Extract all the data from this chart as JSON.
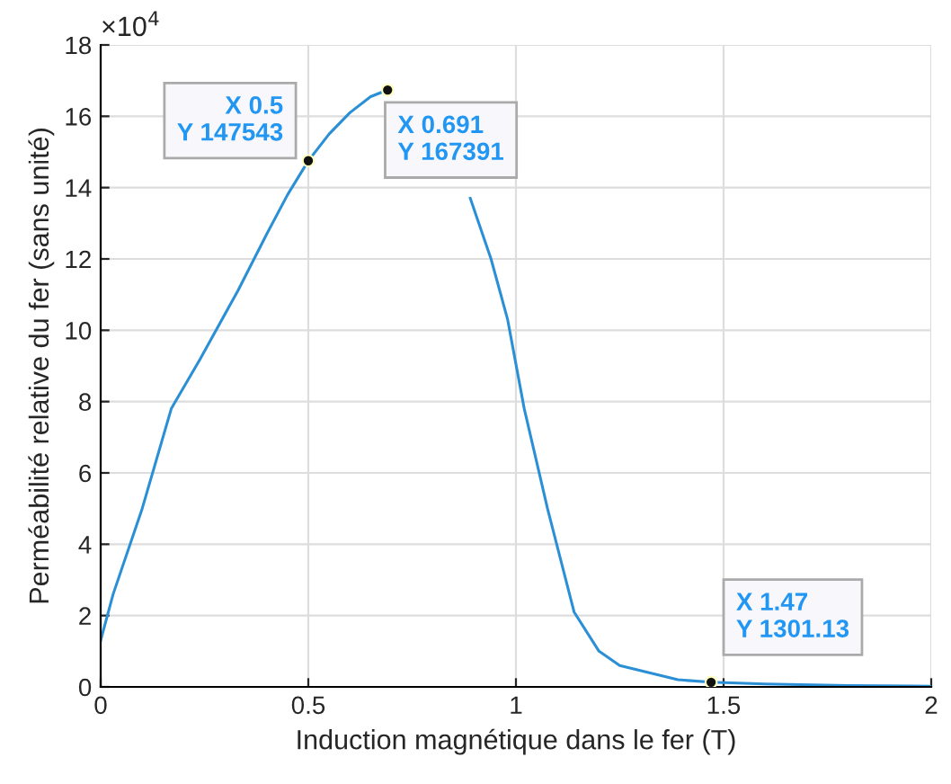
{
  "chart_data": {
    "type": "line",
    "xlabel": "Induction magnétique dans le fer (T)",
    "ylabel": "Perméabilité relative du fer (sans unité)",
    "x": [
      0,
      0.03,
      0.1,
      0.17,
      0.24,
      0.33,
      0.4,
      0.45,
      0.5,
      0.55,
      0.6,
      0.65,
      0.691,
      0.75,
      0.8,
      0.85,
      0.89,
      0.94,
      0.98,
      1.02,
      1.076,
      1.14,
      1.2,
      1.25,
      1.39,
      1.47,
      1.6,
      1.8,
      2.0
    ],
    "series": [
      {
        "color": "#2b8fd6",
        "values": [
          1.3,
          2.6,
          5.0,
          7.8,
          9.2,
          11.1,
          12.7,
          13.8,
          14.75,
          15.5,
          16.1,
          16.55,
          16.74,
          null,
          null,
          null,
          13.7,
          12.0,
          10.3,
          7.8,
          5.0,
          2.1,
          1.0,
          0.6,
          0.2,
          0.13,
          0.08,
          0.04,
          0.02
        ]
      }
    ],
    "xlim": [
      0,
      2
    ],
    "xticks": [
      0,
      0.5,
      1,
      1.5,
      2
    ],
    "ylim": [
      0,
      18
    ],
    "yticks": [
      0,
      2,
      4,
      6,
      8,
      10,
      12,
      14,
      16,
      18
    ],
    "grid": true,
    "marker": "none",
    "line_style": "solid",
    "annotations": [
      "×10$^{4}$",
      {
        "text": "X 0.5\nY 147543",
        "x": 0.5,
        "y": 14.7543
      },
      {
        "text": "X 0.691\nY 167391",
        "x": 0.691,
        "y": 16.7391
      },
      {
        "text": "X 1.47\nY 1301.13",
        "x": 1.47,
        "y": 0.130113
      }
    ]
  }
}
